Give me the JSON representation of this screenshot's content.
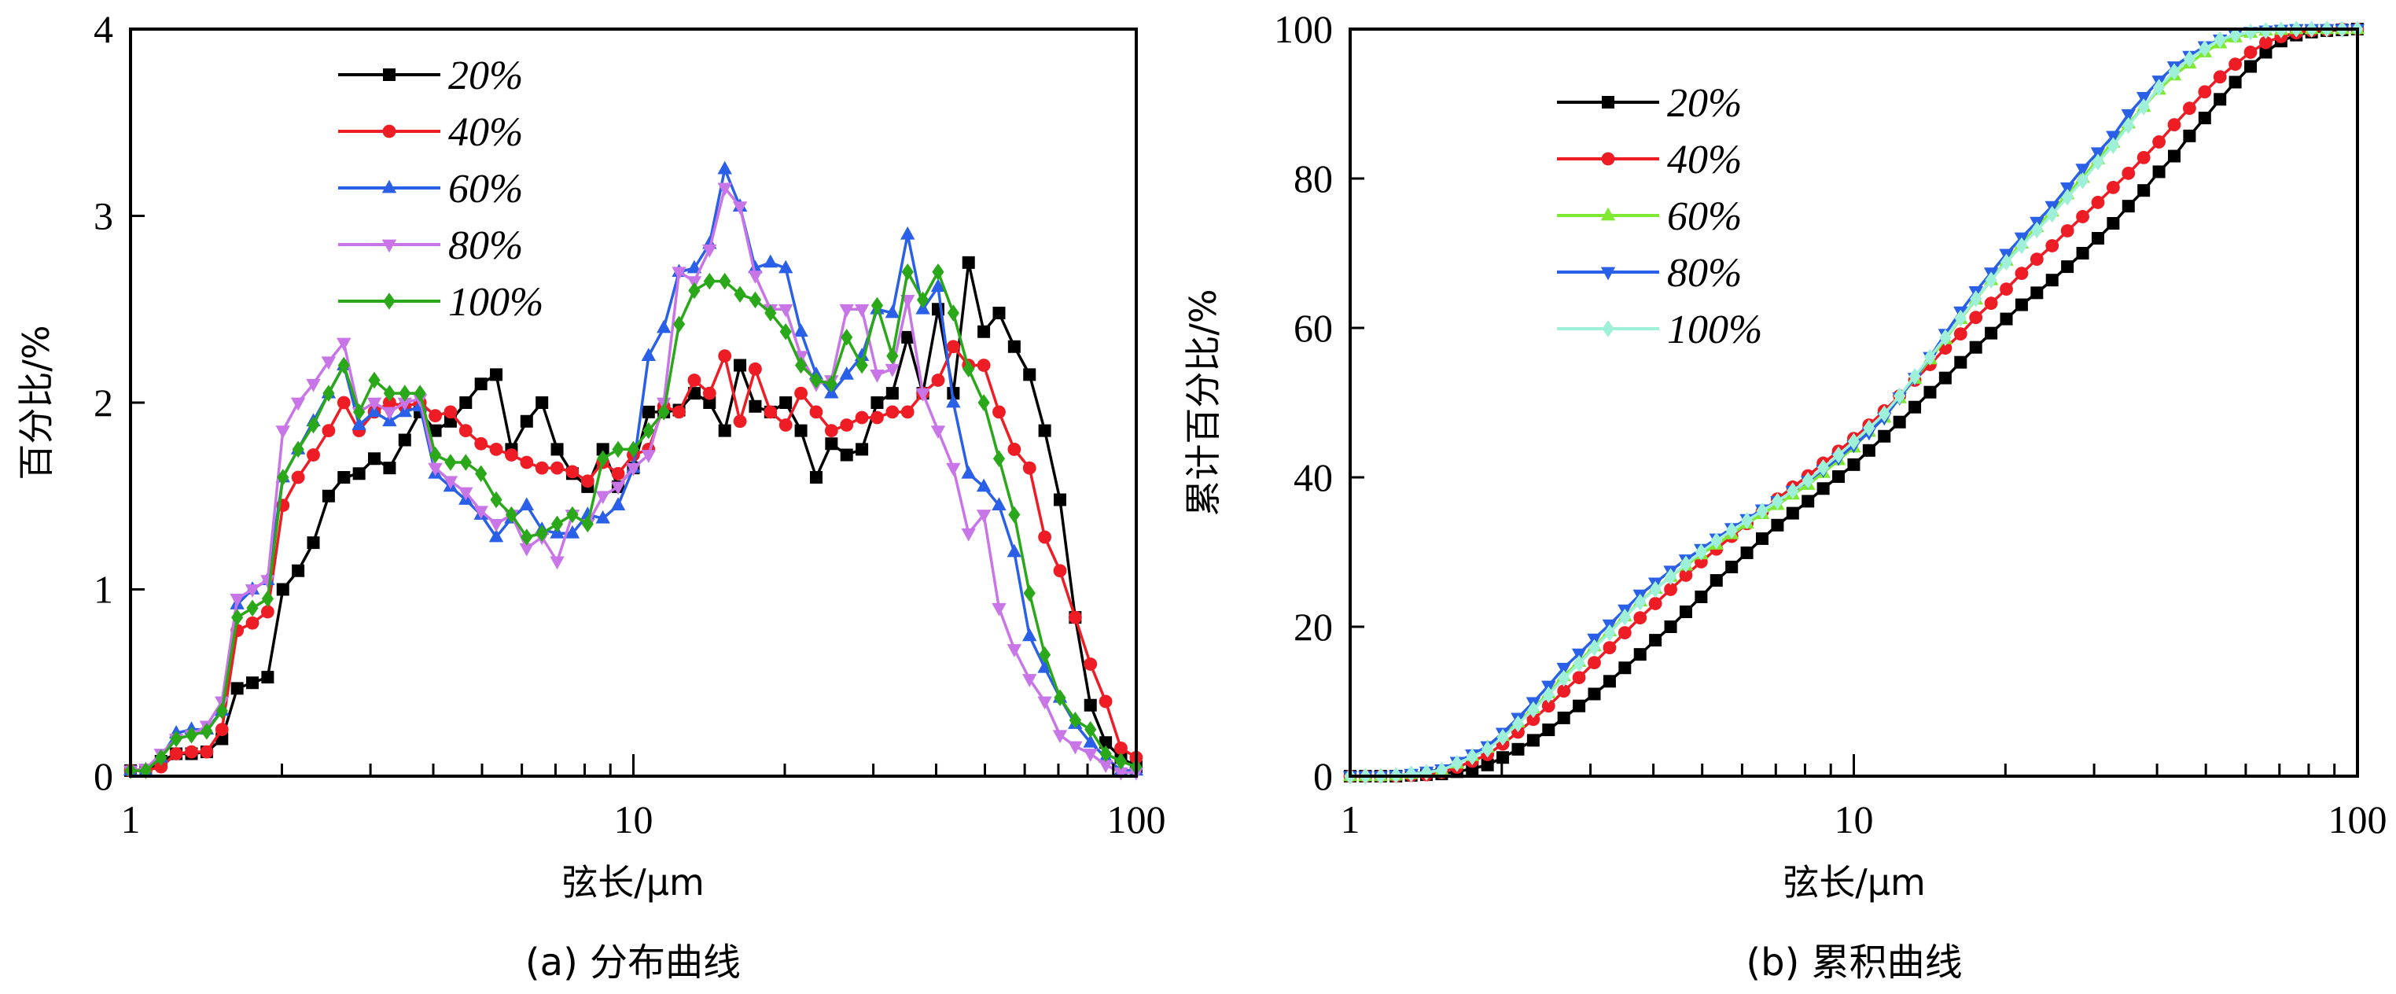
{
  "chart_data": [
    {
      "type": "line",
      "panel_caption": "(a) 分布曲线",
      "title": "",
      "xlabel": "弦长/μm",
      "ylabel": "百分比/%",
      "xscale": "log",
      "xlim": [
        1,
        100
      ],
      "ylim": [
        0,
        4
      ],
      "xticks": [
        1,
        10,
        100
      ],
      "xtick_labels": [
        "1",
        "10",
        "100"
      ],
      "yticks": [
        0,
        1,
        2,
        3,
        4
      ],
      "ytick_labels": [
        "0",
        "1",
        "2",
        "3",
        "4"
      ],
      "grid": false,
      "legend_position": "top-left",
      "x_log10_step": 0.0303,
      "x_points": 67,
      "series": [
        {
          "name": "20%",
          "color": "#000000",
          "marker": "square",
          "values": [
            0.03,
            0.03,
            0.08,
            0.12,
            0.12,
            0.13,
            0.2,
            0.47,
            0.5,
            0.53,
            1.0,
            1.1,
            1.25,
            1.5,
            1.6,
            1.62,
            1.7,
            1.65,
            1.8,
            1.95,
            1.85,
            1.9,
            2.0,
            2.1,
            2.15,
            1.75,
            1.9,
            2.0,
            1.75,
            1.62,
            1.55,
            1.75,
            1.55,
            1.65,
            1.95,
            1.95,
            1.96,
            2.05,
            2.0,
            1.85,
            2.2,
            1.98,
            1.95,
            2.0,
            1.85,
            1.6,
            1.78,
            1.72,
            1.75,
            2.0,
            2.05,
            2.35,
            2.05,
            2.5,
            2.05,
            2.75,
            2.38,
            2.48,
            2.3,
            2.15,
            1.85,
            1.48,
            0.85,
            0.38,
            0.18,
            0.1,
            0.05
          ]
        },
        {
          "name": "40%",
          "color": "#ee1c25",
          "marker": "circle",
          "values": [
            0.03,
            0.03,
            0.05,
            0.12,
            0.13,
            0.13,
            0.25,
            0.78,
            0.82,
            0.88,
            1.45,
            1.6,
            1.72,
            1.85,
            2.0,
            1.85,
            1.95,
            2.0,
            1.98,
            2.0,
            1.93,
            1.95,
            1.85,
            1.78,
            1.75,
            1.72,
            1.68,
            1.65,
            1.65,
            1.63,
            1.58,
            1.68,
            1.62,
            1.72,
            1.75,
            1.98,
            1.95,
            2.12,
            2.05,
            2.25,
            1.9,
            2.18,
            1.95,
            1.88,
            2.05,
            1.95,
            1.85,
            1.88,
            1.92,
            1.92,
            1.95,
            1.95,
            2.05,
            2.12,
            2.3,
            2.2,
            2.2,
            1.95,
            1.75,
            1.65,
            1.28,
            1.1,
            0.85,
            0.6,
            0.4,
            0.15,
            0.1
          ]
        },
        {
          "name": "60%",
          "color": "#2a5fe8",
          "marker": "triangle-up",
          "values": [
            0.03,
            0.03,
            0.1,
            0.23,
            0.25,
            0.25,
            0.35,
            0.92,
            1.0,
            1.05,
            1.6,
            1.75,
            1.9,
            2.05,
            2.2,
            1.88,
            1.95,
            1.9,
            1.95,
            1.98,
            1.62,
            1.55,
            1.48,
            1.4,
            1.28,
            1.38,
            1.45,
            1.32,
            1.3,
            1.3,
            1.4,
            1.38,
            1.45,
            1.65,
            2.25,
            2.4,
            2.7,
            2.72,
            2.85,
            3.25,
            3.05,
            2.72,
            2.75,
            2.72,
            2.38,
            2.15,
            2.05,
            2.15,
            2.25,
            2.5,
            2.48,
            2.9,
            2.5,
            2.62,
            2.0,
            1.62,
            1.55,
            1.45,
            1.2,
            0.75,
            0.58,
            0.42,
            0.28,
            0.18,
            0.1,
            0.03,
            0.03
          ]
        },
        {
          "name": "80%",
          "color": "#c875e8",
          "marker": "triangle-down",
          "values": [
            0.03,
            0.04,
            0.12,
            0.2,
            0.22,
            0.27,
            0.4,
            0.95,
            1.0,
            1.05,
            1.85,
            2.0,
            2.1,
            2.22,
            2.32,
            1.95,
            2.0,
            1.95,
            2.0,
            2.02,
            1.65,
            1.58,
            1.52,
            1.42,
            1.35,
            1.4,
            1.22,
            1.28,
            1.15,
            1.4,
            1.35,
            1.5,
            1.55,
            1.65,
            1.72,
            2.0,
            2.7,
            2.65,
            2.82,
            3.15,
            3.05,
            2.68,
            2.5,
            2.5,
            2.25,
            2.1,
            2.12,
            2.5,
            2.5,
            2.15,
            2.18,
            2.55,
            2.05,
            1.85,
            1.65,
            1.3,
            1.4,
            0.9,
            0.68,
            0.52,
            0.4,
            0.22,
            0.16,
            0.12,
            0.06,
            0.02,
            0.02
          ]
        },
        {
          "name": "100%",
          "color": "#2aa81a",
          "marker": "diamond",
          "values": [
            0.03,
            0.03,
            0.1,
            0.2,
            0.22,
            0.24,
            0.35,
            0.85,
            0.9,
            0.95,
            1.6,
            1.75,
            1.88,
            2.05,
            2.2,
            1.95,
            2.12,
            2.05,
            2.05,
            2.05,
            1.72,
            1.68,
            1.68,
            1.62,
            1.48,
            1.4,
            1.28,
            1.3,
            1.35,
            1.4,
            1.35,
            1.7,
            1.75,
            1.75,
            1.85,
            1.95,
            2.42,
            2.6,
            2.65,
            2.65,
            2.58,
            2.55,
            2.48,
            2.38,
            2.2,
            2.12,
            2.1,
            2.35,
            2.2,
            2.52,
            2.25,
            2.7,
            2.55,
            2.7,
            2.48,
            2.18,
            2.0,
            1.7,
            1.4,
            0.98,
            0.65,
            0.42,
            0.3,
            0.25,
            0.12,
            0.08,
            0.05
          ]
        }
      ]
    },
    {
      "type": "line",
      "panel_caption": "(b) 累积曲线",
      "title": "",
      "xlabel": "弦长/μm",
      "ylabel": "累计百分比/%",
      "xscale": "log",
      "xlim": [
        1,
        100
      ],
      "ylim": [
        0,
        100
      ],
      "xticks": [
        1,
        10,
        100
      ],
      "xtick_labels": [
        "1",
        "10",
        "100"
      ],
      "yticks": [
        0,
        20,
        40,
        60,
        80,
        100
      ],
      "ytick_labels": [
        "0",
        "20",
        "40",
        "60",
        "80",
        "100"
      ],
      "grid": false,
      "legend_position": "top-left",
      "x_log10_step": 0.0303,
      "x_points": 67,
      "series": [
        {
          "name": "20%",
          "color": "#000000",
          "marker": "square",
          "values": [
            0,
            0,
            0,
            0,
            0.1,
            0.2,
            0.3,
            0.6,
            1.0,
            1.5,
            2.5,
            3.6,
            4.8,
            6.2,
            7.8,
            9.4,
            11.0,
            12.7,
            14.5,
            16.3,
            18.2,
            20.0,
            22.0,
            24.0,
            26.2,
            28.0,
            29.9,
            31.8,
            33.6,
            35.2,
            36.8,
            38.5,
            40.1,
            41.7,
            43.6,
            45.5,
            47.4,
            49.4,
            51.4,
            53.3,
            55.4,
            57.4,
            59.3,
            61.2,
            63.1,
            64.7,
            66.4,
            68.2,
            70.0,
            72.0,
            74.0,
            76.3,
            78.4,
            80.9,
            83.0,
            85.7,
            88.1,
            90.6,
            92.9,
            95.0,
            96.9,
            98.4,
            99.2,
            99.6,
            99.8,
            99.9,
            100
          ]
        },
        {
          "name": "40%",
          "color": "#ee1c25",
          "marker": "circle",
          "values": [
            0,
            0,
            0,
            0,
            0.1,
            0.2,
            0.5,
            1.2,
            2.0,
            2.9,
            4.3,
            5.9,
            7.6,
            9.4,
            11.4,
            13.2,
            15.2,
            17.2,
            19.2,
            21.2,
            23.1,
            25.0,
            26.9,
            28.7,
            30.4,
            32.1,
            33.8,
            35.4,
            37.1,
            38.7,
            40.2,
            41.9,
            43.5,
            45.2,
            47.0,
            48.9,
            50.9,
            53.0,
            55.1,
            57.3,
            59.2,
            61.4,
            63.3,
            65.2,
            67.3,
            69.2,
            71.0,
            73.0,
            74.9,
            76.8,
            78.8,
            80.7,
            82.8,
            84.9,
            87.2,
            89.4,
            91.6,
            93.6,
            95.3,
            96.9,
            98.2,
            99.0,
            99.5,
            99.8,
            99.9,
            100,
            100
          ]
        },
        {
          "name": "60%",
          "color": "#7ee832",
          "marker": "triangle-up",
          "values": [
            0,
            0,
            0,
            0.1,
            0.3,
            0.5,
            0.8,
            1.7,
            2.7,
            3.8,
            5.4,
            7.2,
            9.1,
            11.1,
            13.4,
            15.3,
            17.4,
            19.4,
            21.4,
            23.4,
            25.1,
            26.7,
            28.2,
            29.7,
            31.0,
            32.4,
            33.8,
            35.1,
            36.3,
            37.7,
            39.0,
            40.6,
            42.3,
            44.0,
            46.1,
            48.0,
            50.6,
            53.2,
            55.8,
            58.5,
            61.2,
            63.8,
            66.4,
            69.0,
            71.3,
            73.5,
            75.6,
            77.9,
            80.1,
            82.6,
            84.8,
            87.4,
            89.6,
            91.9,
            93.8,
            95.4,
            96.9,
            98.1,
            98.9,
            99.5,
            99.8,
            99.9,
            100,
            100,
            100,
            100,
            100
          ]
        },
        {
          "name": "80%",
          "color": "#2a5fe8",
          "marker": "triangle-down",
          "values": [
            0,
            0,
            0,
            0.1,
            0.3,
            0.6,
            0.9,
            1.9,
            2.9,
            4.0,
            5.8,
            7.8,
            9.9,
            12.1,
            14.5,
            16.4,
            18.4,
            20.3,
            22.3,
            24.3,
            25.9,
            27.5,
            29.0,
            30.4,
            31.8,
            33.2,
            34.4,
            35.7,
            36.8,
            38.2,
            39.5,
            41.0,
            42.6,
            44.3,
            46.0,
            48.0,
            50.7,
            53.3,
            56.1,
            59.2,
            62.2,
            64.9,
            67.4,
            69.9,
            72.1,
            74.2,
            76.3,
            78.8,
            81.3,
            83.5,
            85.7,
            88.6,
            90.9,
            93.1,
            95.0,
            96.4,
            97.7,
            98.6,
            99.2,
            99.6,
            99.8,
            99.9,
            100,
            100,
            100,
            100,
            100
          ]
        },
        {
          "name": "100%",
          "color": "#9ff0d8",
          "marker": "diamond",
          "values": [
            0,
            0,
            0,
            0.1,
            0.3,
            0.5,
            0.8,
            1.7,
            2.6,
            3.6,
            5.2,
            7.0,
            8.9,
            10.9,
            13.1,
            15.1,
            17.2,
            19.2,
            21.3,
            23.3,
            25.0,
            26.7,
            28.4,
            30.0,
            31.5,
            32.9,
            34.2,
            35.5,
            36.8,
            38.2,
            39.6,
            41.3,
            43.0,
            44.8,
            46.6,
            48.5,
            50.9,
            53.5,
            56.1,
            58.7,
            61.3,
            63.9,
            66.4,
            68.8,
            71.0,
            73.1,
            75.2,
            77.5,
            79.7,
            82.2,
            84.4,
            87.1,
            89.6,
            92.2,
            94.3,
            96.0,
            97.4,
            98.6,
            99.2,
            99.6,
            99.8,
            99.9,
            100,
            100,
            100,
            100,
            100
          ]
        }
      ]
    }
  ]
}
